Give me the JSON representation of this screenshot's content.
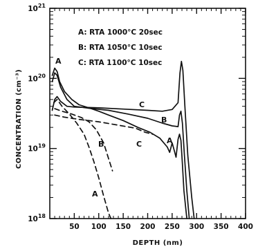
{
  "chart_data": {
    "type": "line",
    "xlabel": "DEPTH (nm)",
    "ylabel": "CONCENTRATION (cm⁻³)",
    "xlim": [
      0,
      400
    ],
    "ylim": [
      1e+18,
      1e+21
    ],
    "yscale": "log",
    "xticks": [
      "50",
      "100",
      "150",
      "200",
      "250",
      "300",
      "350",
      "400"
    ],
    "yticks": [
      {
        "base": "10",
        "exp": "18"
      },
      {
        "base": "10",
        "exp": "19"
      },
      {
        "base": "10",
        "exp": "20"
      },
      {
        "base": "10",
        "exp": "21"
      }
    ],
    "legend": [
      "A: RTA 1000°C  20sec",
      "B: RTA 1050°C  10sec",
      "C: RTA 1100°C  10sec"
    ],
    "series": [
      {
        "name": "A",
        "style": "solid",
        "points": [
          [
            5,
            1.1e+20
          ],
          [
            10,
            1.4e+20
          ],
          [
            15,
            1.25e+20
          ],
          [
            20,
            9e+19
          ],
          [
            30,
            6.5e+19
          ],
          [
            45,
            5e+19
          ],
          [
            60,
            4.2e+19
          ],
          [
            80,
            3.8e+19
          ],
          [
            100,
            3.4e+19
          ],
          [
            120,
            3e+19
          ],
          [
            150,
            2.5e+19
          ],
          [
            180,
            2e+19
          ],
          [
            205,
            1.7e+19
          ],
          [
            225,
            1.4e+19
          ],
          [
            240,
            1.05e+19
          ],
          [
            245,
            8.8e+18
          ],
          [
            250,
            1.2e+19
          ],
          [
            255,
            9e+18
          ],
          [
            258,
            7.5e+18
          ],
          [
            262,
            1.35e+19
          ],
          [
            265,
            1.6e+19
          ],
          [
            268,
            1.3e+19
          ],
          [
            271,
            6e+18
          ],
          [
            274,
            2.5e+18
          ],
          [
            280,
            1e+18
          ]
        ]
      },
      {
        "name": "B",
        "style": "solid",
        "points": [
          [
            5,
            9e+19
          ],
          [
            10,
            1.2e+20
          ],
          [
            15,
            1.1e+20
          ],
          [
            22,
            7.5e+19
          ],
          [
            35,
            5e+19
          ],
          [
            50,
            4e+19
          ],
          [
            80,
            3.75e+19
          ],
          [
            120,
            3.5e+19
          ],
          [
            160,
            3.1e+19
          ],
          [
            200,
            2.7e+19
          ],
          [
            230,
            2.3e+19
          ],
          [
            250,
            2.1e+19
          ],
          [
            262,
            2.05e+19
          ],
          [
            265,
            3e+19
          ],
          [
            268,
            3.4e+19
          ],
          [
            271,
            2.3e+19
          ],
          [
            275,
            8e+18
          ],
          [
            280,
            2.5e+18
          ],
          [
            285,
            1e+18
          ]
        ]
      },
      {
        "name": "C",
        "style": "solid",
        "points": [
          [
            5,
            3.5e+19
          ],
          [
            10,
            5e+19
          ],
          [
            15,
            5.5e+19
          ],
          [
            22,
            4.7e+19
          ],
          [
            35,
            4e+19
          ],
          [
            50,
            3.9e+19
          ],
          [
            100,
            3.8e+19
          ],
          [
            150,
            3.65e+19
          ],
          [
            200,
            3.5e+19
          ],
          [
            230,
            3.4e+19
          ],
          [
            250,
            3.6e+19
          ],
          [
            262,
            4.5e+19
          ],
          [
            266,
            1.2e+20
          ],
          [
            269,
            1.75e+20
          ],
          [
            272,
            1.3e+20
          ],
          [
            276,
            4e+19
          ],
          [
            282,
            8e+18
          ],
          [
            290,
            2e+18
          ],
          [
            295,
            1e+18
          ]
        ]
      },
      {
        "name": "A",
        "style": "dashed",
        "points": [
          [
            8,
            4.5e+19
          ],
          [
            15,
            5e+19
          ],
          [
            25,
            4e+19
          ],
          [
            40,
            3.1e+19
          ],
          [
            55,
            2.3e+19
          ],
          [
            70,
            1.6e+19
          ],
          [
            80,
            1.05e+19
          ],
          [
            90,
            6.5e+18
          ],
          [
            100,
            3.8e+18
          ],
          [
            110,
            2.1e+18
          ],
          [
            120,
            1.2e+18
          ],
          [
            125,
            1e+18
          ]
        ]
      },
      {
        "name": "B",
        "style": "dashed",
        "points": [
          [
            10,
            3.7e+19
          ],
          [
            25,
            3.4e+19
          ],
          [
            45,
            3.1e+19
          ],
          [
            65,
            2.75e+19
          ],
          [
            80,
            2.4e+19
          ],
          [
            95,
            1.85e+19
          ],
          [
            110,
            1.2e+19
          ],
          [
            120,
            7.2e+18
          ],
          [
            128,
            4.8e+18
          ]
        ]
      },
      {
        "name": "C",
        "style": "dashed",
        "points": [
          [
            10,
            3e+19
          ],
          [
            30,
            2.8e+19
          ],
          [
            60,
            2.6e+19
          ],
          [
            100,
            2.4e+19
          ],
          [
            140,
            2.15e+19
          ],
          [
            175,
            1.95e+19
          ],
          [
            195,
            1.7e+19
          ],
          [
            210,
            1.6e+19
          ]
        ]
      }
    ]
  }
}
